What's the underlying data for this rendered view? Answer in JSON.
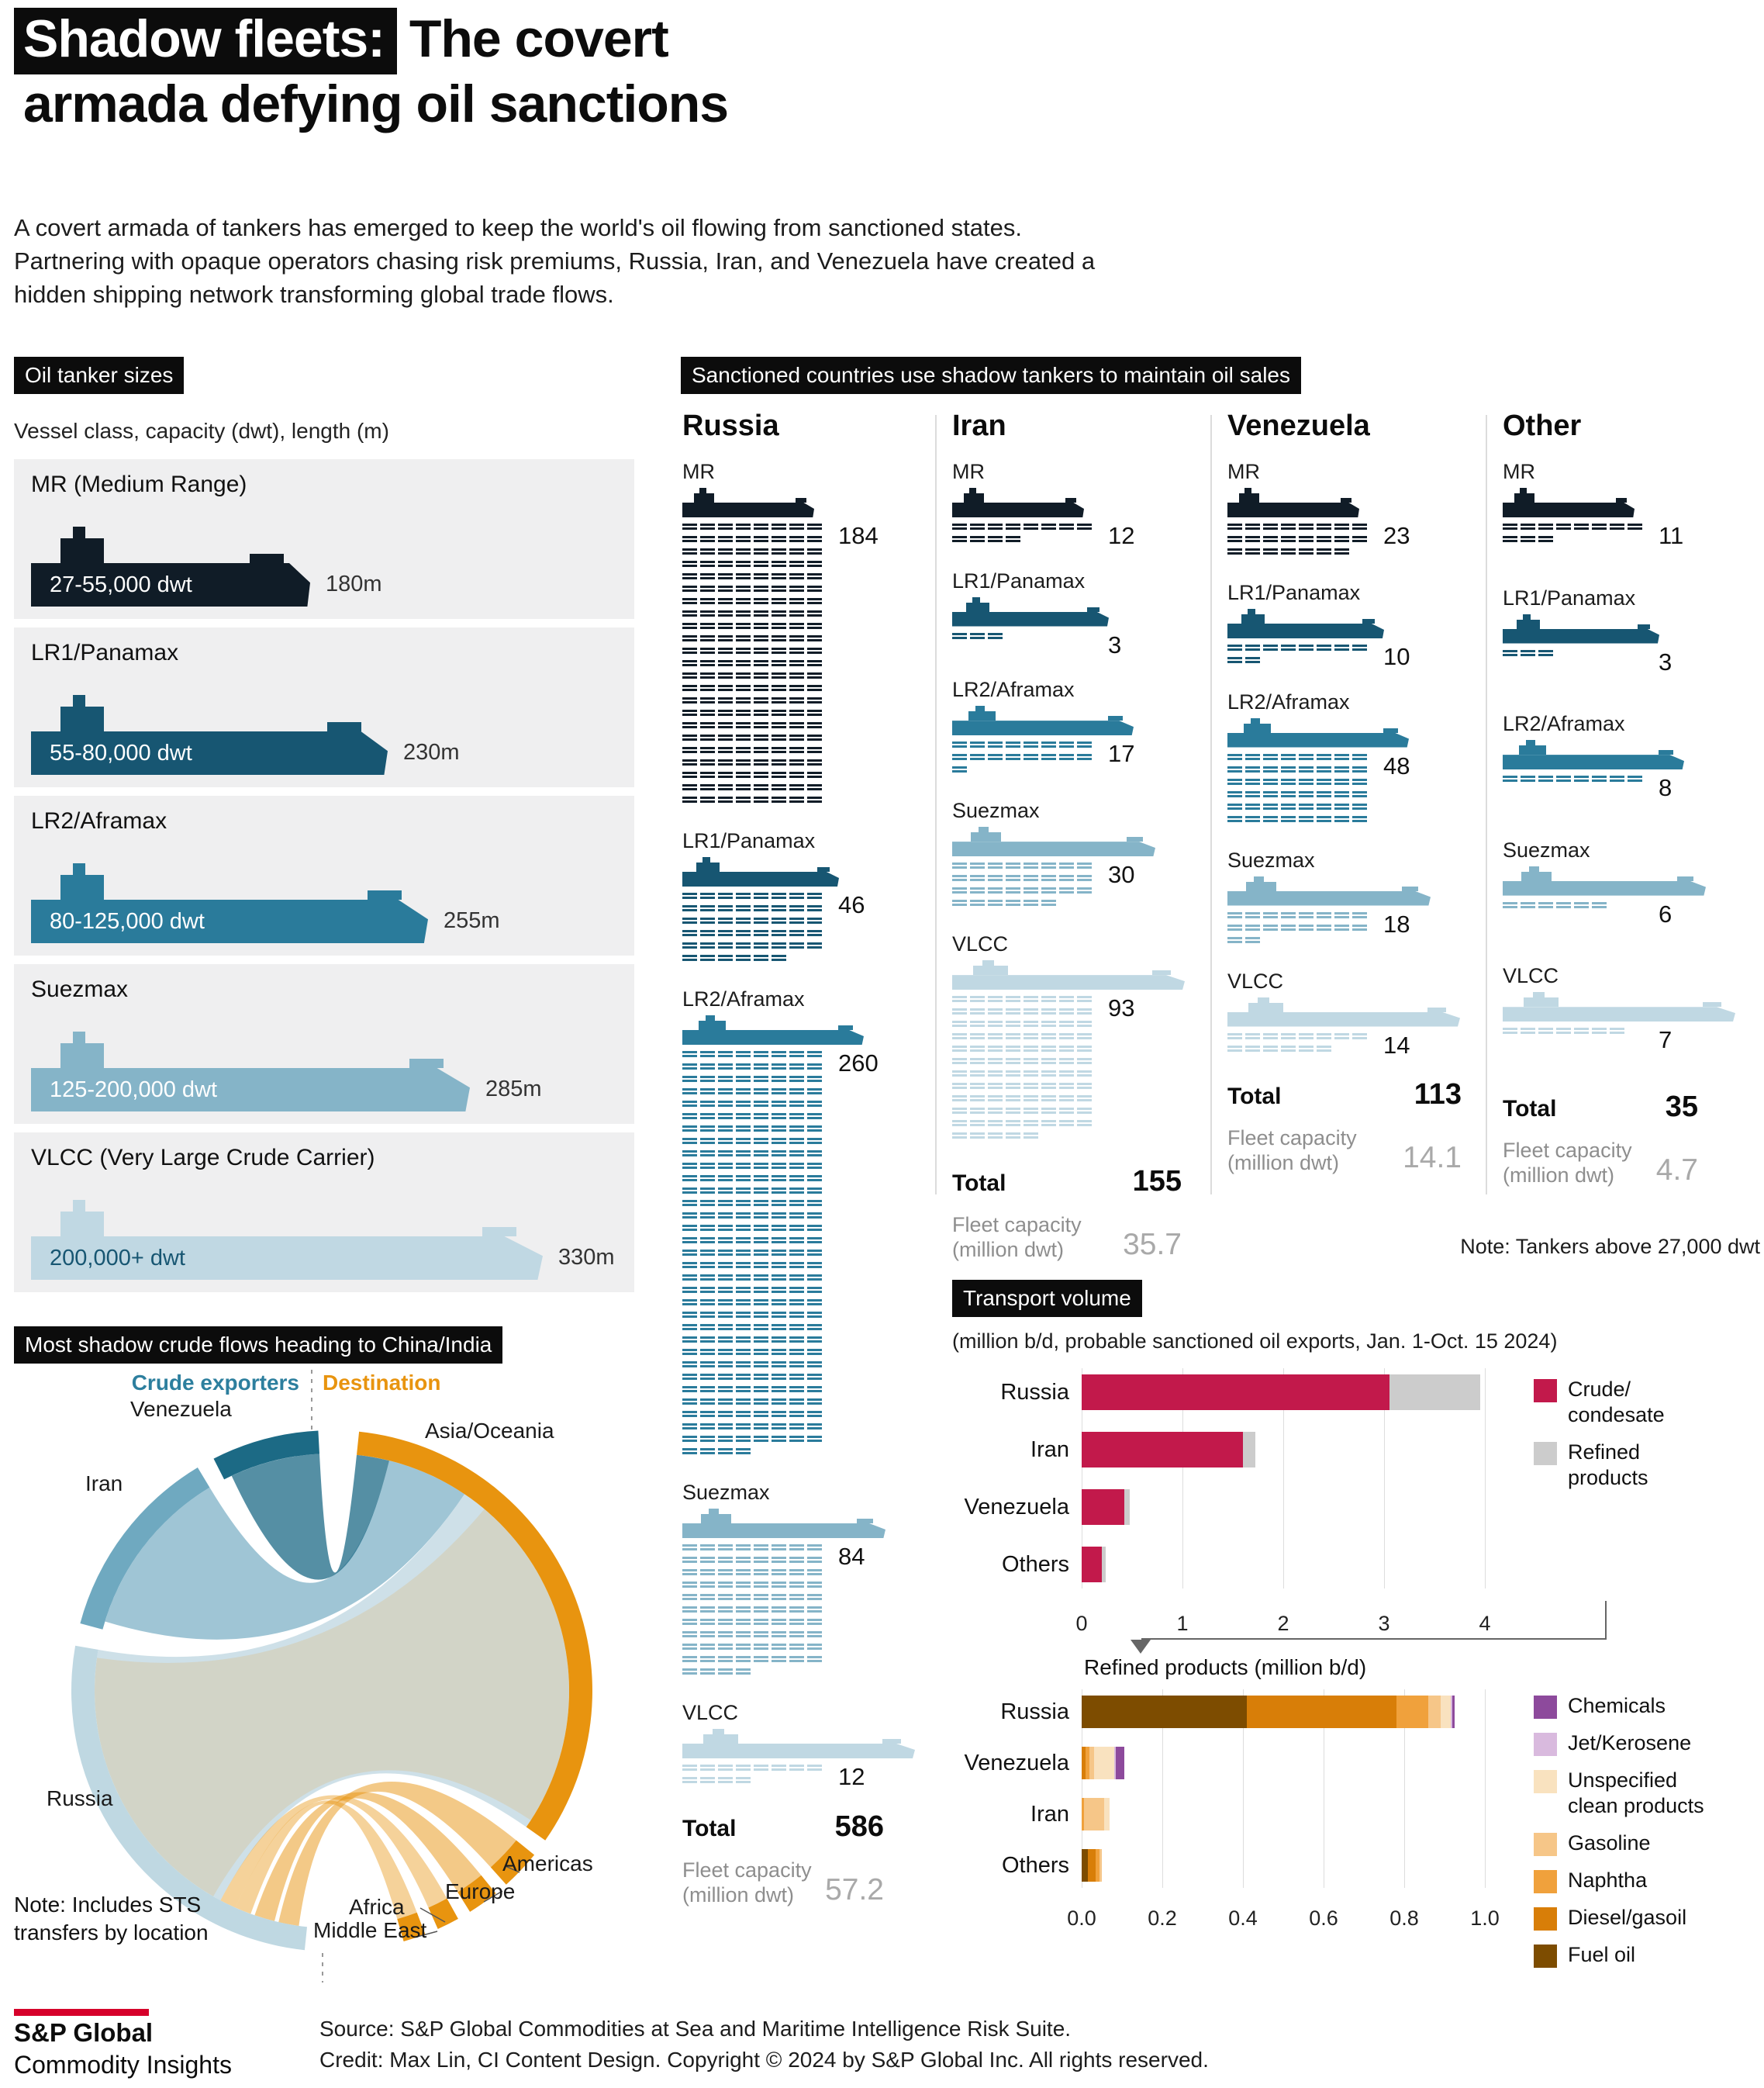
{
  "page": {
    "title": {
      "highlight": "Shadow fleets:",
      "rest": "The covert",
      "line2": "armada defying oil sanctions"
    },
    "intro": "A covert armada of tankers has emerged to keep the world's oil flowing from sanctioned states. Partnering with opaque operators chasing risk premiums, Russia, Iran, and Venezuela have created a hidden shipping network transforming global trade flows."
  },
  "tanker_sizes": {
    "header": "Oil tanker sizes",
    "subtitle": "Vessel class, capacity (dwt), length (m)",
    "classes": [
      {
        "name": "MR (Medium Range)",
        "capacity": "27-55,000 dwt",
        "length": "180m"
      },
      {
        "name": "LR1/Panamax",
        "capacity": "55-80,000 dwt",
        "length": "230m"
      },
      {
        "name": "LR2/Aframax",
        "capacity": "80-125,000 dwt",
        "length": "255m"
      },
      {
        "name": "Suezmax",
        "capacity": "125-200,000 dwt",
        "length": "285m"
      },
      {
        "name": "VLCC (Very Large Crude Carrier)",
        "capacity": "200,000+ dwt",
        "length": "330m"
      }
    ]
  },
  "fleet": {
    "total_label": "Total",
    "capacity_label_lines": [
      "Fleet capacity",
      "(million dwt)"
    ],
    "class_colors": [
      "#101c27",
      "#175672",
      "#2a7b9b",
      "#85b4c8",
      "#c0d8e3"
    ]
  },
  "footer": {
    "brand_line1": "S&P Global",
    "brand_line2": "Commodity Insights",
    "source": "Source: S&P Global Commodities at Sea and Maritime Intelligence Risk Suite.",
    "credit": "Credit: Max Lin, CI Content Design.  Copyright © 2024 by S&P Global Inc.  All rights reserved."
  },
  "chart_data": [
    {
      "type": "table",
      "title": "Sanctioned countries use shadow tankers to maintain oil sales",
      "note": "Note: Tankers above 27,000 dwt",
      "vessel_classes": [
        "MR",
        "LR1/Panamax",
        "LR2/Aframax",
        "Suezmax",
        "VLCC"
      ],
      "rows": [
        {
          "country": "Russia",
          "counts": [
            184,
            46,
            260,
            84,
            12
          ],
          "total": 586,
          "fleet_capacity_million_dwt": 57.2
        },
        {
          "country": "Iran",
          "counts": [
            12,
            3,
            17,
            30,
            93
          ],
          "total": 155,
          "fleet_capacity_million_dwt": 35.7
        },
        {
          "country": "Venezuela",
          "counts": [
            23,
            10,
            48,
            18,
            14
          ],
          "total": 113,
          "fleet_capacity_million_dwt": 14.1
        },
        {
          "country": "Other",
          "counts": [
            11,
            3,
            8,
            6,
            7
          ],
          "total": 35,
          "fleet_capacity_million_dwt": 4.7
        }
      ]
    },
    {
      "type": "bar",
      "title": "Transport volume",
      "subtitle": "(million b/d, probable sanctioned oil exports, Jan. 1-Oct. 15 2024)",
      "orientation": "horizontal",
      "stacked": true,
      "grid": true,
      "legend_position": "right",
      "categories": [
        "Russia",
        "Iran",
        "Venezuela",
        "Others"
      ],
      "series": [
        {
          "name": "Crude/condesate",
          "legend_lines": [
            "Crude/",
            "condesate"
          ],
          "color": "#c2194b",
          "values": [
            3.05,
            1.6,
            0.42,
            0.2
          ]
        },
        {
          "name": "Refined products",
          "legend_lines": [
            "Refined",
            "products"
          ],
          "color": "#cccccc",
          "values": [
            0.9,
            0.12,
            0.06,
            0.04
          ]
        }
      ],
      "xlim": [
        0,
        4
      ],
      "xticks": [
        "0",
        "1",
        "2",
        "3",
        "4"
      ]
    },
    {
      "type": "bar",
      "title": "Refined products (million b/d)",
      "orientation": "horizontal",
      "stacked": true,
      "grid": true,
      "legend_position": "right",
      "categories": [
        "Russia",
        "Venezuela",
        "Iran",
        "Others"
      ],
      "series": [
        {
          "name": "Fuel oil",
          "legend_lines": [
            "Fuel oil"
          ],
          "color": "#7d4c00",
          "values": [
            0.41,
            0,
            0,
            0.015
          ]
        },
        {
          "name": "Diesel/gasoil",
          "legend_lines": [
            "Diesel/gasoil"
          ],
          "color": "#d87e08",
          "values": [
            0.37,
            0.01,
            0,
            0.02
          ]
        },
        {
          "name": "Naphtha",
          "legend_lines": [
            "Naphtha"
          ],
          "color": "#f0a13c",
          "values": [
            0.08,
            0.01,
            0.005,
            0.01
          ]
        },
        {
          "name": "Gasoline",
          "legend_lines": [
            "Gasoline"
          ],
          "color": "#f6c688",
          "values": [
            0.03,
            0.01,
            0.05,
            0.005
          ]
        },
        {
          "name": "Unspecified clean products",
          "legend_lines": [
            "Unspecified",
            "clean products"
          ],
          "color": "#f9e2bf",
          "values": [
            0.025,
            0.05,
            0.015,
            0
          ]
        },
        {
          "name": "Jet/Kerosene",
          "legend_lines": [
            "Jet/Kerosene"
          ],
          "color": "#d9bade",
          "values": [
            0.005,
            0.005,
            0,
            0
          ]
        },
        {
          "name": "Chemicals",
          "legend_lines": [
            "Chemicals"
          ],
          "color": "#8d4a9c",
          "values": [
            0.005,
            0.02,
            0,
            0
          ]
        }
      ],
      "xlim": [
        0,
        1.0
      ],
      "xticks": [
        "0.0",
        "0.2",
        "0.4",
        "0.6",
        "0.8",
        "1.0"
      ],
      "legend_order": [
        "Chemicals",
        "Jet/Kerosene",
        "Unspecified clean products",
        "Gasoline",
        "Naphtha",
        "Diesel/gasoil",
        "Fuel oil"
      ]
    },
    {
      "type": "chord",
      "title": "Most shadow crude flows heading to China/India",
      "note": "Note: Includes STS transfers by location",
      "left_group_label": "Crude exporters",
      "right_group_label": "Destination",
      "left_label_color": "#2d7f9e",
      "right_label_color": "#e8940f",
      "exporters": [
        {
          "name": "Venezuela",
          "color": "#1c6a85"
        },
        {
          "name": "Iran",
          "color": "#6fa9c0"
        },
        {
          "name": "Russia",
          "color": "#bfd8e2"
        }
      ],
      "destinations": [
        {
          "name": "Asia/Oceania",
          "color": "#e8940f"
        },
        {
          "name": "Americas",
          "color": "#e8940f"
        },
        {
          "name": "Europe",
          "color": "#e8940f"
        },
        {
          "name": "Africa",
          "color": "#e8940f"
        },
        {
          "name": "Middle East",
          "color": "#e8940f"
        }
      ]
    }
  ]
}
